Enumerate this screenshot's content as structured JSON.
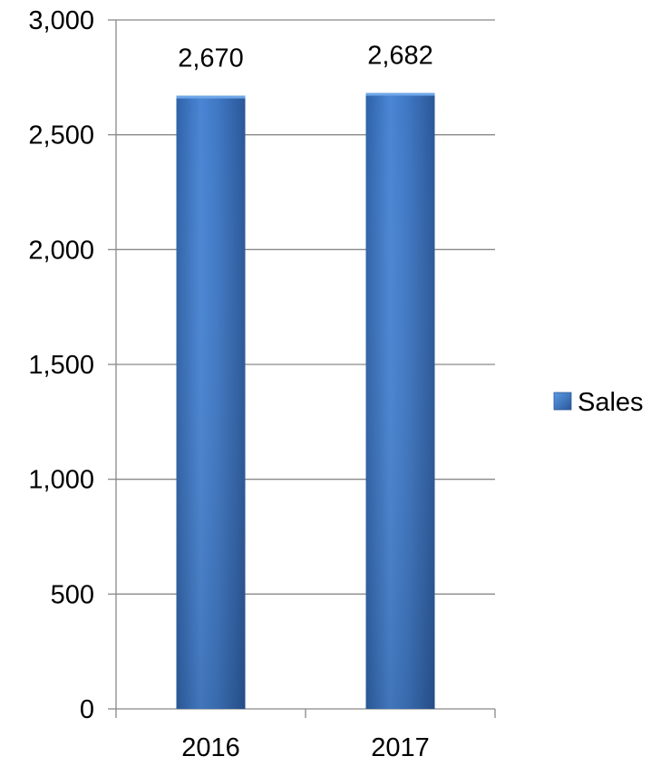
{
  "chart_data": {
    "type": "bar",
    "categories": [
      "2016",
      "2017"
    ],
    "series": [
      {
        "name": "Sales",
        "values": [
          2670,
          2682
        ],
        "data_labels": [
          "2,670",
          "2,682"
        ]
      }
    ],
    "title": "",
    "xlabel": "",
    "ylabel": "",
    "ylim": [
      0,
      3000
    ],
    "yticks": [
      0,
      500,
      1000,
      1500,
      2000,
      2500,
      3000
    ],
    "ytick_labels": [
      "0",
      "500",
      "1,000",
      "1,500",
      "2,000",
      "2,500",
      "3,000"
    ],
    "grid": true,
    "legend": {
      "placement": "right",
      "entries": [
        "Sales"
      ]
    },
    "colors": {
      "bar_light": "#4f8fd9",
      "bar_mid": "#3a74c0",
      "bar_dark": "#2c5a9a",
      "gridline": "#898989",
      "axis": "#898989"
    }
  }
}
